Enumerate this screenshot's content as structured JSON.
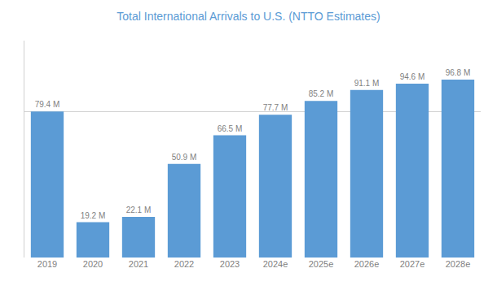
{
  "chart_data": {
    "type": "bar",
    "title": "Total International Arrivals to U.S. (NTTO Estimates)",
    "categories": [
      "2019",
      "2020",
      "2021",
      "2022",
      "2023",
      "2024e",
      "2025e",
      "2026e",
      "2027e",
      "2028e"
    ],
    "values": [
      79.4,
      19.2,
      22.1,
      50.9,
      66.5,
      77.7,
      85.2,
      91.1,
      94.6,
      96.8
    ],
    "value_labels": [
      "79.4 M",
      "19.2 M",
      "22.1 M",
      "50.9 M",
      "66.5 M",
      "77.7 M",
      "85.2 M",
      "91.1 M",
      "94.6 M",
      "96.8 M"
    ],
    "data_labels": true,
    "color": "#5B9BD5",
    "ylim": [
      0,
      118
    ],
    "yticks": [
      79.4
    ],
    "grid": true,
    "tick_labels": "x"
  }
}
